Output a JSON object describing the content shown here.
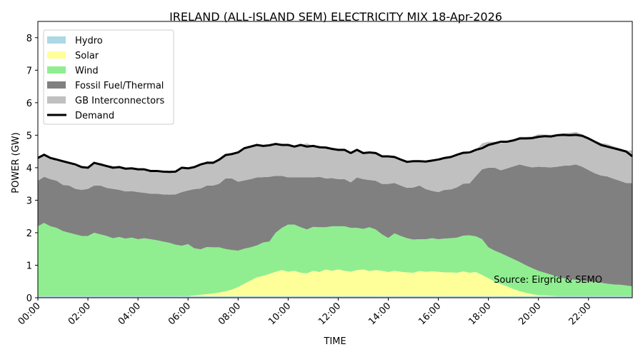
{
  "chart_data": {
    "type": "area",
    "title": "IRELAND (ALL-ISLAND SEM) ELECTRICITY MIX 18-Apr-2026",
    "xlabel": "TIME",
    "ylabel": "POWER (GW)",
    "xlim": [
      "00:00",
      "23:45"
    ],
    "ylim": [
      0,
      8.5
    ],
    "x_ticks": [
      "00:00",
      "02:00",
      "04:00",
      "06:00",
      "08:00",
      "10:00",
      "12:00",
      "14:00",
      "16:00",
      "18:00",
      "20:00",
      "22:00"
    ],
    "y_ticks": [
      0,
      1,
      2,
      3,
      4,
      5,
      6,
      7,
      8
    ],
    "x_interval_minutes": 15,
    "stacked": true,
    "grid": false,
    "legend_position": "top-left",
    "annotation": "Source: Eirgrid & SEMO",
    "series": [
      {
        "name": "Hydro",
        "kind": "area",
        "color": "#add8e6",
        "values": [
          0.05,
          0.05,
          0.05,
          0.05,
          0.05,
          0.05,
          0.05,
          0.05,
          0.05,
          0.05,
          0.05,
          0.05,
          0.05,
          0.05,
          0.05,
          0.05,
          0.05,
          0.05,
          0.05,
          0.05,
          0.05,
          0.05,
          0.05,
          0.05,
          0.05,
          0.05,
          0.05,
          0.05,
          0.05,
          0.05,
          0.05,
          0.05,
          0.05,
          0.05,
          0.05,
          0.05,
          0.05,
          0.05,
          0.05,
          0.05,
          0.05,
          0.05,
          0.05,
          0.05,
          0.05,
          0.05,
          0.05,
          0.05,
          0.05,
          0.05,
          0.05,
          0.05,
          0.05,
          0.05,
          0.05,
          0.05,
          0.05,
          0.05,
          0.05,
          0.05,
          0.05,
          0.05,
          0.05,
          0.05,
          0.05,
          0.05,
          0.05,
          0.05,
          0.05,
          0.05,
          0.05,
          0.05,
          0.05,
          0.05,
          0.05,
          0.05,
          0.05,
          0.05,
          0.05,
          0.05,
          0.05,
          0.05,
          0.05,
          0.05,
          0.05,
          0.05,
          0.05,
          0.05,
          0.05,
          0.05,
          0.05,
          0.05,
          0.05,
          0.05,
          0.05,
          0.05
        ]
      },
      {
        "name": "Solar",
        "kind": "area",
        "color": "#ffff99",
        "values": [
          0,
          0,
          0,
          0,
          0,
          0,
          0,
          0,
          0,
          0,
          0,
          0,
          0,
          0,
          0,
          0,
          0,
          0,
          0,
          0,
          0,
          0,
          0,
          0,
          0,
          0.02,
          0.04,
          0.06,
          0.08,
          0.11,
          0.15,
          0.2,
          0.28,
          0.38,
          0.48,
          0.58,
          0.62,
          0.68,
          0.75,
          0.8,
          0.75,
          0.78,
          0.72,
          0.7,
          0.78,
          0.74,
          0.82,
          0.78,
          0.82,
          0.78,
          0.75,
          0.8,
          0.82,
          0.77,
          0.8,
          0.78,
          0.74,
          0.78,
          0.75,
          0.73,
          0.72,
          0.77,
          0.75,
          0.76,
          0.75,
          0.73,
          0.73,
          0.72,
          0.76,
          0.72,
          0.74,
          0.65,
          0.55,
          0.45,
          0.37,
          0.3,
          0.22,
          0.15,
          0.1,
          0.06,
          0.03,
          0.02,
          0.01,
          0,
          0,
          0,
          0,
          0,
          0,
          0,
          0,
          0,
          0,
          0,
          0,
          0
        ]
      },
      {
        "name": "Wind",
        "kind": "area",
        "color": "#90ee90",
        "values": [
          2.15,
          2.25,
          2.15,
          2.1,
          2.0,
          1.95,
          1.9,
          1.85,
          1.85,
          1.95,
          1.9,
          1.85,
          1.78,
          1.82,
          1.77,
          1.8,
          1.75,
          1.78,
          1.75,
          1.72,
          1.68,
          1.64,
          1.58,
          1.55,
          1.6,
          1.45,
          1.4,
          1.45,
          1.42,
          1.39,
          1.3,
          1.22,
          1.12,
          1.08,
          1.02,
          0.98,
          1.03,
          1.0,
          1.2,
          1.3,
          1.45,
          1.42,
          1.4,
          1.35,
          1.35,
          1.38,
          1.3,
          1.37,
          1.33,
          1.37,
          1.35,
          1.3,
          1.25,
          1.35,
          1.25,
          1.12,
          1.05,
          1.15,
          1.1,
          1.05,
          1.02,
          0.98,
          1.0,
          1.02,
          1.0,
          1.04,
          1.05,
          1.08,
          1.1,
          1.15,
          1.1,
          1.1,
          0.95,
          0.95,
          0.95,
          0.93,
          0.92,
          0.9,
          0.85,
          0.8,
          0.75,
          0.7,
          0.65,
          0.6,
          0.55,
          0.52,
          0.5,
          0.48,
          0.45,
          0.43,
          0.41,
          0.38,
          0.36,
          0.35,
          0.33,
          0.3
        ]
      },
      {
        "name": "Fossil Fuel/Thermal",
        "kind": "area",
        "color": "#808080",
        "values": [
          1.4,
          1.42,
          1.45,
          1.45,
          1.42,
          1.45,
          1.4,
          1.42,
          1.45,
          1.45,
          1.5,
          1.48,
          1.52,
          1.45,
          1.45,
          1.43,
          1.45,
          1.4,
          1.4,
          1.43,
          1.45,
          1.48,
          1.55,
          1.65,
          1.65,
          1.82,
          1.87,
          1.89,
          1.9,
          1.96,
          2.17,
          2.2,
          2.12,
          2.1,
          2.1,
          2.09,
          2.01,
          1.99,
          1.75,
          1.6,
          1.45,
          1.45,
          1.53,
          1.6,
          1.52,
          1.55,
          1.5,
          1.48,
          1.45,
          1.45,
          1.4,
          1.55,
          1.53,
          1.45,
          1.5,
          1.55,
          1.66,
          1.55,
          1.55,
          1.55,
          1.6,
          1.65,
          1.54,
          1.46,
          1.45,
          1.5,
          1.5,
          1.55,
          1.6,
          1.6,
          1.85,
          2.15,
          2.45,
          2.55,
          2.55,
          2.7,
          2.85,
          3.0,
          3.05,
          3.1,
          3.2,
          3.25,
          3.3,
          3.38,
          3.46,
          3.5,
          3.55,
          3.5,
          3.43,
          3.35,
          3.3,
          3.3,
          3.25,
          3.2,
          3.15,
          3.18
        ]
      },
      {
        "name": "GB Interconnectors",
        "kind": "area",
        "color": "#c0c0c0",
        "values": [
          0.7,
          0.68,
          0.65,
          0.6,
          0.7,
          0.7,
          0.7,
          0.7,
          0.65,
          0.65,
          0.7,
          0.7,
          0.7,
          0.7,
          0.7,
          0.68,
          0.7,
          0.72,
          0.7,
          0.7,
          0.7,
          0.7,
          0.7,
          0.75,
          0.68,
          0.7,
          0.74,
          0.75,
          0.75,
          0.75,
          0.72,
          0.75,
          0.92,
          0.99,
          1.0,
          1.0,
          0.97,
          0.97,
          0.98,
          0.95,
          1.0,
          0.95,
          1.0,
          1.05,
          0.97,
          0.95,
          0.95,
          0.9,
          0.9,
          0.87,
          0.85,
          0.85,
          0.8,
          0.85,
          0.85,
          0.85,
          0.85,
          0.8,
          0.8,
          0.8,
          0.8,
          0.75,
          0.85,
          0.9,
          0.95,
          0.98,
          1.0,
          1.0,
          0.95,
          0.9,
          0.8,
          0.8,
          0.8,
          0.8,
          0.83,
          0.82,
          0.82,
          0.85,
          0.9,
          0.95,
          1.0,
          1.0,
          1.0,
          1.0,
          1.0,
          1.0,
          1.0,
          1.0,
          1.0,
          1.0,
          1.0,
          1.0,
          1.0,
          1.0,
          1.0,
          1.0
        ]
      },
      {
        "name": "Demand",
        "kind": "line",
        "color": "#000000",
        "values": [
          4.3,
          4.4,
          4.3,
          4.25,
          4.2,
          4.15,
          4.1,
          4.02,
          4.0,
          4.15,
          4.1,
          4.05,
          4.0,
          4.02,
          3.97,
          3.98,
          3.95,
          3.95,
          3.9,
          3.9,
          3.88,
          3.87,
          3.88,
          4.0,
          3.98,
          4.02,
          4.1,
          4.15,
          4.15,
          4.25,
          4.39,
          4.42,
          4.47,
          4.6,
          4.65,
          4.7,
          4.67,
          4.69,
          4.73,
          4.7,
          4.7,
          4.65,
          4.7,
          4.65,
          4.67,
          4.63,
          4.62,
          4.58,
          4.55,
          4.55,
          4.45,
          4.55,
          4.45,
          4.47,
          4.45,
          4.35,
          4.35,
          4.33,
          4.25,
          4.18,
          4.2,
          4.2,
          4.19,
          4.22,
          4.25,
          4.3,
          4.33,
          4.4,
          4.46,
          4.47,
          4.55,
          4.6,
          4.7,
          4.75,
          4.8,
          4.8,
          4.84,
          4.9,
          4.9,
          4.91,
          4.95,
          4.97,
          4.96,
          5.0,
          5.01,
          5.0,
          5.01,
          4.98,
          4.9,
          4.8,
          4.7,
          4.65,
          4.6,
          4.55,
          4.5,
          4.35
        ]
      }
    ]
  }
}
